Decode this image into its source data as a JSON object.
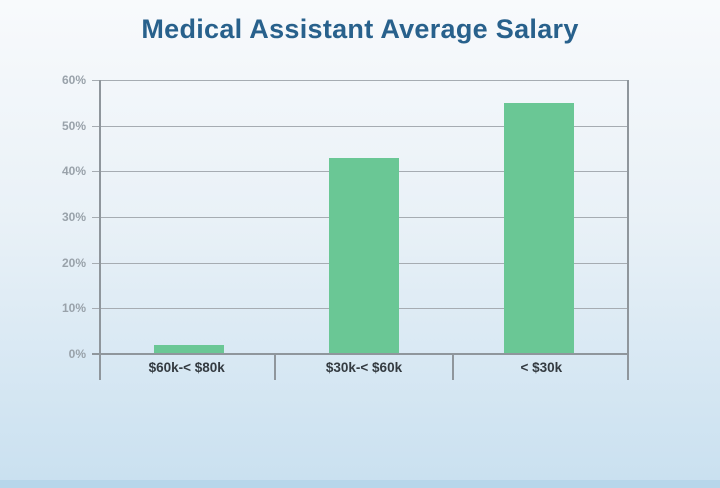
{
  "page": {
    "background_gradient": [
      "#f8fafc",
      "#e9f1f7",
      "#c9e0f0"
    ],
    "bottom_strip_color": "#b7d6ea"
  },
  "chart_data": {
    "type": "bar",
    "title": "Medical Assistant Average Salary",
    "title_color": "#28618c",
    "categories": [
      "$60k-< $80k",
      "$30k-< $60k",
      "< $30k"
    ],
    "values": [
      2,
      43,
      55
    ],
    "bar_color": "#6ac795",
    "xlabel": "",
    "ylabel": "",
    "ylim": [
      0,
      60
    ],
    "ytick_step": 10,
    "ytick_labels": [
      "0%",
      "10%",
      "20%",
      "30%",
      "40%",
      "50%",
      "60%"
    ],
    "grid": true,
    "legend": false,
    "gridline_color": "#a6acb2",
    "axis_color": "#8f969c"
  }
}
